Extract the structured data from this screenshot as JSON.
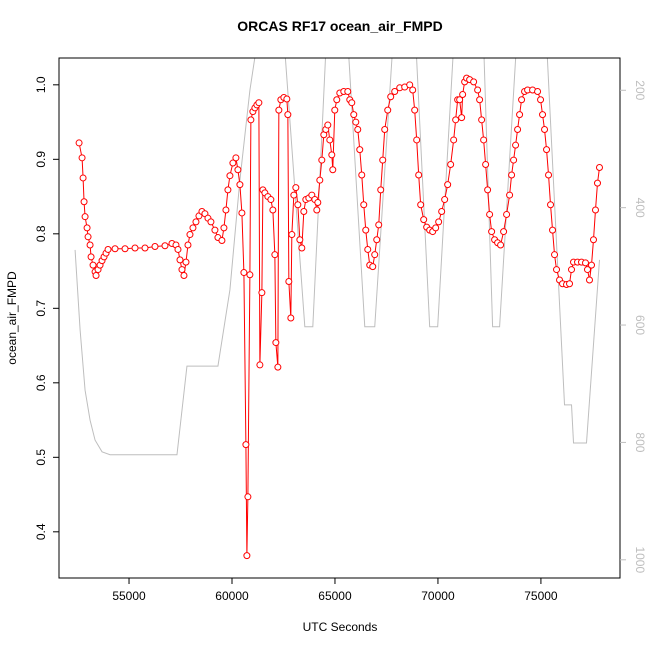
{
  "chart_data": {
    "type": "line",
    "title": "ORCAS RF17 ocean_air_FMPD",
    "xlabel": "UTC Seconds",
    "ylabel": "ocean_air_FMPD",
    "xlim": [
      51600,
      78840
    ],
    "ylim": [
      0.338,
      1.036
    ],
    "y2lim": [
      1031,
      145
    ],
    "xticks": [
      55000,
      60000,
      65000,
      70000,
      75000
    ],
    "yticks": [
      0.4,
      0.5,
      0.6,
      0.7,
      0.8,
      0.9,
      {
        "value": 1.0,
        "label": "1.0"
      }
    ],
    "y2ticks": [
      200,
      400,
      600,
      800,
      1000
    ],
    "grid": false,
    "series": [
      {
        "color": "#bebebe",
        "axis": "y2",
        "markers": false,
        "x": [
          52381,
          52624,
          52866,
          53108,
          53351,
          53690,
          54079,
          57328,
          57813,
          59317,
          59899,
          60384,
          60869,
          61300,
          62000,
          62500,
          63536,
          63924,
          64600,
          65600,
          66447,
          66931,
          67850,
          68900,
          69599,
          69987,
          70800,
          72200,
          72654,
          72994,
          73850,
          75250,
          76146,
          76486,
          76583,
          77213,
          77844
        ],
        "values": [
          472,
          608,
          711,
          762,
          796,
          816,
          821,
          821,
          670,
          670,
          540,
          353,
          200,
          100,
          100,
          100,
          603,
          603,
          100,
          100,
          603,
          603,
          100,
          100,
          603,
          603,
          100,
          100,
          603,
          603,
          100,
          100,
          736,
          736,
          801,
          801,
          489
        ]
      },
      {
        "color": "#ff0000",
        "markers": true,
        "x": [
          52575,
          52720,
          52769,
          52817,
          52866,
          52963,
          53011,
          53108,
          53157,
          53254,
          53351,
          53399,
          53496,
          53593,
          53690,
          53787,
          53884,
          53981,
          54321,
          54806,
          55291,
          55776,
          56261,
          56746,
          57085,
          57280,
          57377,
          57474,
          57571,
          57668,
          57765,
          57862,
          57959,
          58104,
          58250,
          58395,
          58541,
          58686,
          58832,
          58977,
          59171,
          59317,
          59511,
          59608,
          59705,
          59802,
          59899,
          60044,
          60190,
          60287,
          60384,
          60481,
          60578,
          60675,
          60723,
          60772,
          60869,
          60917,
          61014,
          61111,
          61208,
          61305,
          61354,
          61451,
          61499,
          61596,
          61742,
          61887,
          61984,
          62081,
          62130,
          62227,
          62275,
          62372,
          62518,
          62663,
          62712,
          62760,
          62857,
          62906,
          63003,
          63100,
          63197,
          63294,
          63391,
          63488,
          63585,
          63730,
          63876,
          64021,
          64118,
          64167,
          64264,
          64361,
          64458,
          64555,
          64652,
          64749,
          64846,
          64894,
          64991,
          65088,
          65234,
          65428,
          65622,
          65719,
          65816,
          65913,
          66010,
          66107,
          66204,
          66301,
          66398,
          66495,
          66592,
          66689,
          66834,
          66931,
          67028,
          67125,
          67222,
          67319,
          67416,
          67562,
          67707,
          67901,
          68144,
          68386,
          68629,
          68774,
          68871,
          68968,
          69065,
          69162,
          69308,
          69453,
          69599,
          69744,
          69890,
          70035,
          70181,
          70326,
          70472,
          70617,
          70763,
          70860,
          70957,
          71054,
          71151,
          71199,
          71296,
          71393,
          71539,
          71733,
          71927,
          72024,
          72121,
          72218,
          72315,
          72412,
          72509,
          72606,
          72751,
          72897,
          73042,
          73188,
          73333,
          73479,
          73576,
          73673,
          73770,
          73867,
          73964,
          74061,
          74206,
          74352,
          74594,
          74837,
          74982,
          75079,
          75176,
          75273,
          75370,
          75467,
          75564,
          75661,
          75758,
          75904,
          76049,
          76243,
          76389,
          76486,
          76583,
          76777,
          76971,
          77165,
          77262,
          77359,
          77456,
          77553,
          77650,
          77747,
          77844
        ],
        "values": [
          0.922,
          0.902,
          0.875,
          0.843,
          0.823,
          0.808,
          0.796,
          0.785,
          0.769,
          0.758,
          0.749,
          0.744,
          0.752,
          0.758,
          0.764,
          0.769,
          0.774,
          0.779,
          0.78,
          0.78,
          0.781,
          0.781,
          0.783,
          0.784,
          0.787,
          0.785,
          0.779,
          0.765,
          0.752,
          0.744,
          0.762,
          0.785,
          0.799,
          0.808,
          0.816,
          0.824,
          0.83,
          0.827,
          0.821,
          0.816,
          0.805,
          0.795,
          0.791,
          0.808,
          0.832,
          0.859,
          0.878,
          0.895,
          0.902,
          0.886,
          0.866,
          0.828,
          0.748,
          0.517,
          0.368,
          0.447,
          0.745,
          0.953,
          0.964,
          0.969,
          0.973,
          0.976,
          0.624,
          0.721,
          0.859,
          0.855,
          0.85,
          0.846,
          0.832,
          0.772,
          0.654,
          0.621,
          0.966,
          0.98,
          0.983,
          0.981,
          0.96,
          0.736,
          0.687,
          0.799,
          0.852,
          0.862,
          0.839,
          0.792,
          0.781,
          0.83,
          0.846,
          0.848,
          0.852,
          0.846,
          0.832,
          0.842,
          0.872,
          0.899,
          0.933,
          0.94,
          0.946,
          0.926,
          0.906,
          0.886,
          0.966,
          0.98,
          0.989,
          0.991,
          0.991,
          0.98,
          0.976,
          0.96,
          0.95,
          0.94,
          0.913,
          0.879,
          0.839,
          0.805,
          0.779,
          0.758,
          0.756,
          0.772,
          0.792,
          0.812,
          0.859,
          0.899,
          0.94,
          0.966,
          0.984,
          0.991,
          0.996,
          0.997,
          1.0,
          0.993,
          0.966,
          0.926,
          0.879,
          0.839,
          0.819,
          0.809,
          0.805,
          0.803,
          0.808,
          0.816,
          0.83,
          0.846,
          0.866,
          0.893,
          0.926,
          0.953,
          0.98,
          0.98,
          0.956,
          0.987,
          1.004,
          1.009,
          1.007,
          1.004,
          0.993,
          0.98,
          0.953,
          0.926,
          0.893,
          0.859,
          0.826,
          0.803,
          0.792,
          0.788,
          0.785,
          0.803,
          0.826,
          0.852,
          0.879,
          0.899,
          0.919,
          0.94,
          0.96,
          0.98,
          0.991,
          0.993,
          0.993,
          0.991,
          0.98,
          0.96,
          0.94,
          0.913,
          0.879,
          0.839,
          0.805,
          0.772,
          0.752,
          0.738,
          0.733,
          0.732,
          0.733,
          0.752,
          0.762,
          0.762,
          0.762,
          0.761,
          0.752,
          0.738,
          0.758,
          0.792,
          0.832,
          0.868,
          0.889
        ]
      }
    ]
  }
}
